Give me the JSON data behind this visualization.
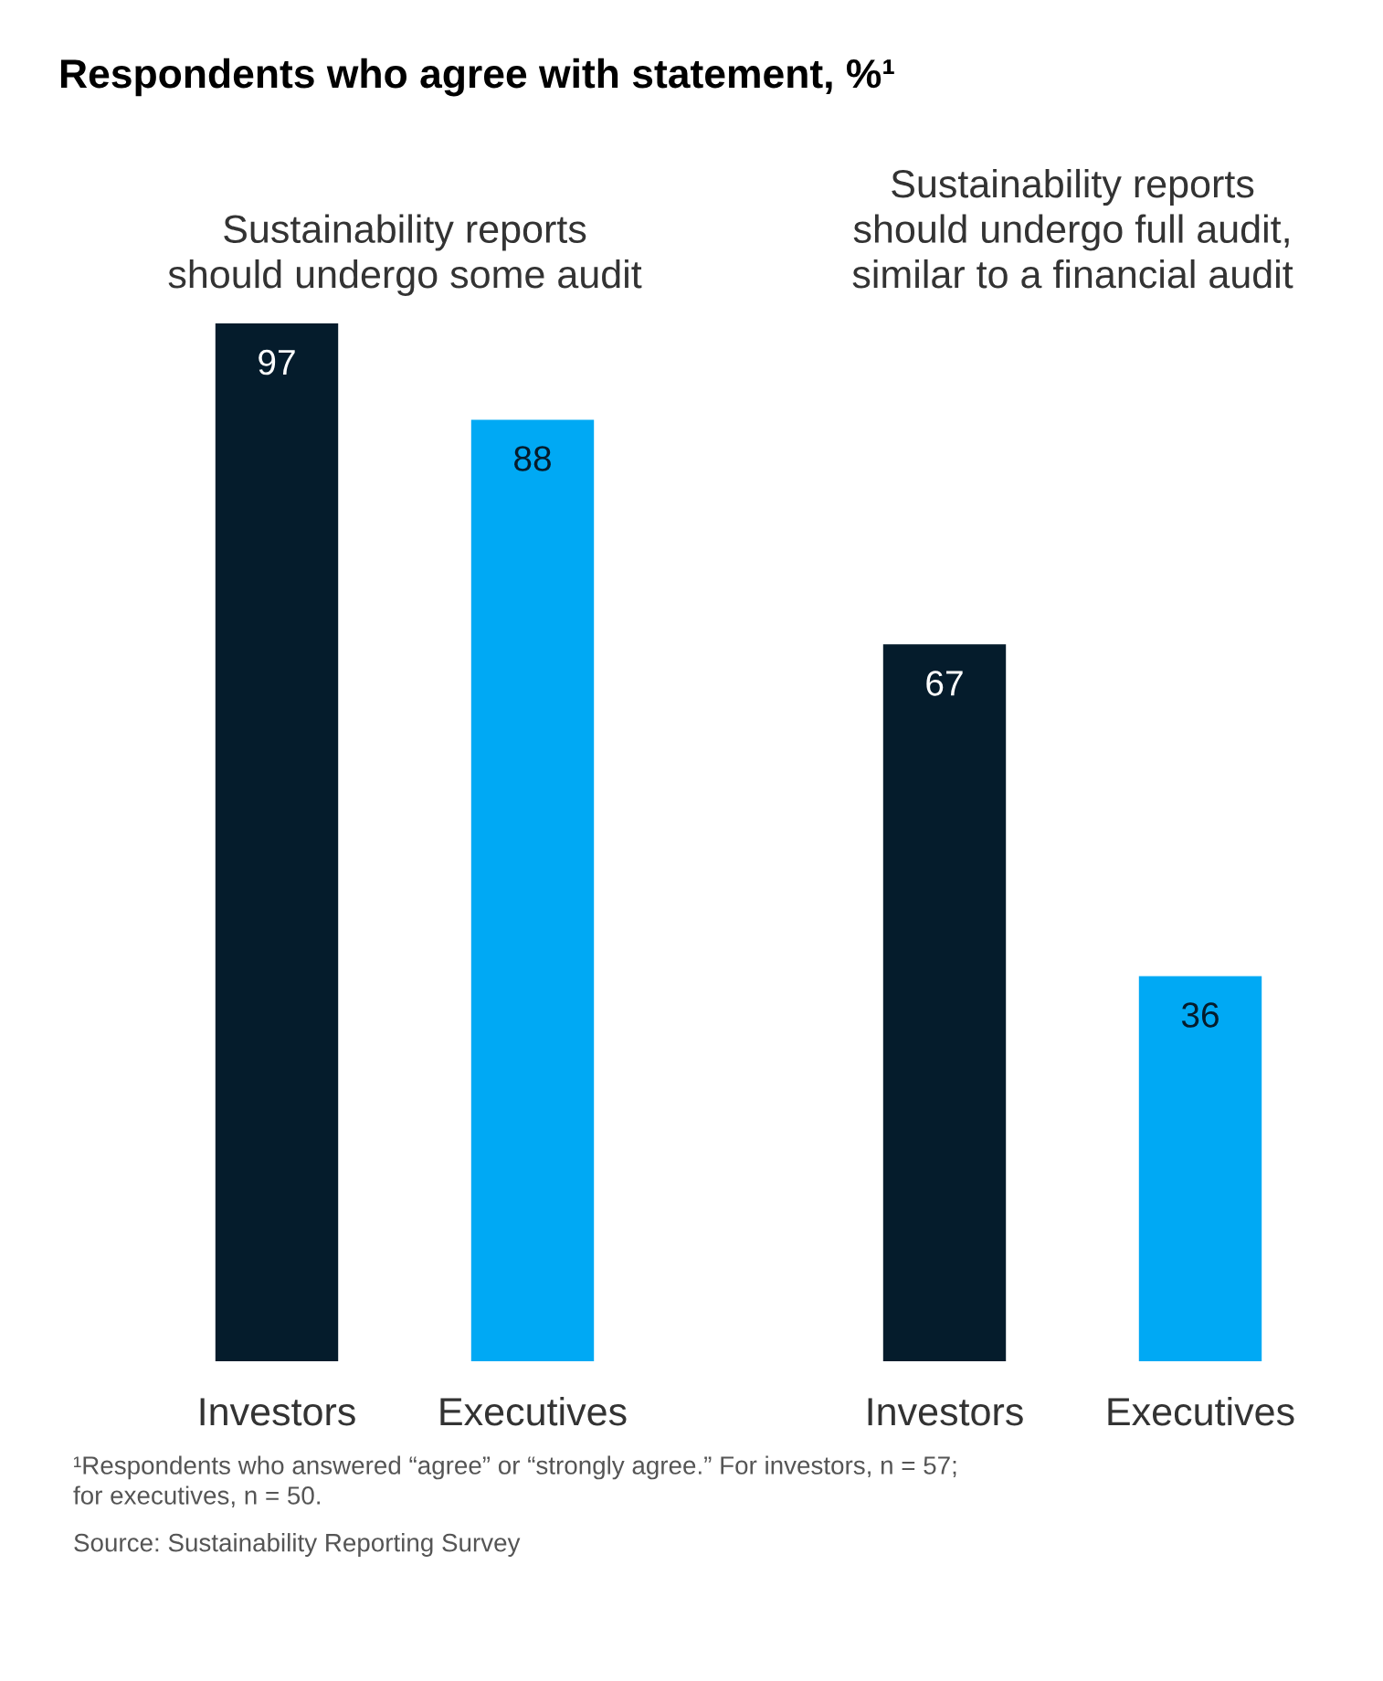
{
  "chart_data": [
    {
      "type": "bar",
      "title": "Respondents who agree with statement, %¹",
      "subtitle": "Sustainability reports\nshould undergo some audit",
      "categories": [
        "Investors",
        "Executives"
      ],
      "values": [
        97,
        88
      ],
      "colors": [
        "#051c2c",
        "#00a9f4"
      ],
      "data_labels": true
    },
    {
      "type": "bar",
      "subtitle": "Sustainability reports\nshould undergo full audit,\nsimilar to a financial audit",
      "categories": [
        "Investors",
        "Executives"
      ],
      "values": [
        67,
        36
      ],
      "colors": [
        "#051c2c",
        "#00a9f4"
      ],
      "data_labels": true,
      "annotations": [
        "¹Respondents who answered “agree” or “strongly agree.” For investors, n = 57;\nfor executives, n = 50.",
        "Source: Sustainability Reporting Survey"
      ]
    }
  ]
}
